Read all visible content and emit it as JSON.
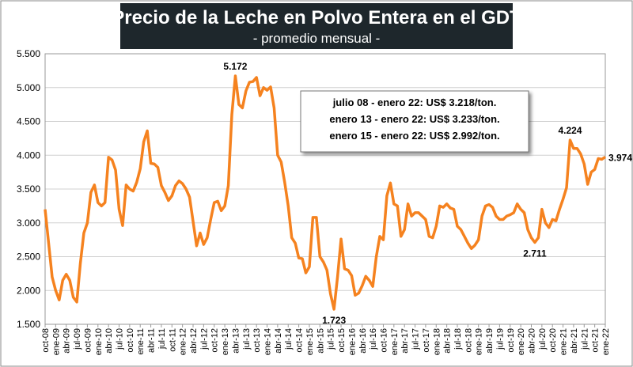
{
  "chart_data": {
    "type": "line",
    "title": "Precio de la Leche en Polvo Entera en el GDT",
    "subtitle": "- promedio mensual -",
    "annotations": [
      "julio 08 - enero 22: US$ 3.218/ton.",
      "enero 13 - enero 22: US$ 3.233/ton.",
      "enero 15 - enero 22: US$ 2.992/ton."
    ],
    "color": "#f5821f",
    "grid": true,
    "ylim": [
      1500,
      5500
    ],
    "yticks": [
      {
        "value": 1500,
        "label": "1.500"
      },
      {
        "value": 2000,
        "label": "2.000"
      },
      {
        "value": 2500,
        "label": "2.500"
      },
      {
        "value": 3000,
        "label": "3.000"
      },
      {
        "value": 3500,
        "label": "3.500"
      },
      {
        "value": 4000,
        "label": "4.000"
      },
      {
        "value": 4500,
        "label": "4.500"
      },
      {
        "value": 5000,
        "label": "5.000"
      },
      {
        "value": 5500,
        "label": "5.500"
      }
    ],
    "categories": [
      "oct-08",
      null,
      null,
      "ene-09",
      null,
      null,
      "abr-09",
      null,
      null,
      "jul-09",
      null,
      null,
      "oct-09",
      null,
      null,
      "ene-10",
      null,
      null,
      "abr-10",
      null,
      null,
      "jul-10",
      null,
      null,
      "oct-10",
      null,
      null,
      "ene-11",
      null,
      null,
      "abr-11",
      null,
      null,
      "jul-11",
      null,
      null,
      "oct-11",
      null,
      null,
      "ene-12",
      null,
      null,
      "abr-12",
      null,
      null,
      "jul-12",
      null,
      null,
      "oct-12",
      null,
      null,
      "ene-13",
      null,
      null,
      "abr-13",
      null,
      null,
      "jul-13",
      null,
      null,
      "oct-13",
      null,
      null,
      "ene-14",
      null,
      null,
      "abr-14",
      null,
      null,
      "jul-14",
      null,
      null,
      "oct-14",
      null,
      null,
      "ene-15",
      null,
      null,
      "abr-15",
      null,
      null,
      "jul-15",
      null,
      null,
      "oct-15",
      null,
      null,
      "ene-16",
      null,
      null,
      "abr-16",
      null,
      null,
      "jul-16",
      null,
      null,
      "oct-16",
      null,
      null,
      "ene-17",
      null,
      null,
      "abr-17",
      null,
      null,
      "jul-17",
      null,
      null,
      "oct-17",
      null,
      null,
      "ene-18",
      null,
      null,
      "abr-18",
      null,
      null,
      "jul-18",
      null,
      null,
      "oct-18",
      null,
      null,
      "ene-19",
      null,
      null,
      "abr-19",
      null,
      null,
      "jul-19",
      null,
      null,
      "oct-19",
      null,
      null,
      "ene-20",
      null,
      null,
      "abr-20",
      null,
      null,
      "jul-20",
      null,
      null,
      "oct-20",
      null,
      null,
      "ene-21",
      null,
      null,
      "abr-21",
      null,
      null,
      "jul-21",
      null,
      null,
      "oct-21",
      null,
      null,
      "ene-22"
    ],
    "values": [
      3200,
      2700,
      2200,
      2000,
      1860,
      2150,
      2240,
      2150,
      1900,
      1830,
      2400,
      2850,
      3000,
      3450,
      3560,
      3300,
      3250,
      3300,
      3970,
      3930,
      3780,
      3200,
      2960,
      3560,
      3500,
      3470,
      3600,
      3800,
      4200,
      4360,
      3880,
      3870,
      3820,
      3550,
      3450,
      3330,
      3400,
      3550,
      3620,
      3580,
      3500,
      3380,
      3020,
      2660,
      2850,
      2680,
      2780,
      3050,
      3300,
      3320,
      3180,
      3250,
      3550,
      4600,
      5172,
      4750,
      4700,
      4950,
      5080,
      5090,
      5150,
      4880,
      5000,
      4960,
      5010,
      4700,
      4000,
      3900,
      3600,
      3250,
      2780,
      2700,
      2480,
      2470,
      2260,
      2350,
      3080,
      3080,
      2500,
      2420,
      2300,
      1950,
      1723,
      2200,
      2760,
      2320,
      2300,
      2220,
      1930,
      1960,
      2070,
      2210,
      2150,
      2060,
      2500,
      2800,
      2750,
      3400,
      3590,
      3280,
      3250,
      2800,
      2900,
      3280,
      3100,
      3150,
      3150,
      3100,
      3050,
      2800,
      2780,
      2950,
      3250,
      3230,
      3280,
      3220,
      3200,
      2950,
      2900,
      2800,
      2700,
      2620,
      2670,
      2750,
      3100,
      3250,
      3270,
      3230,
      3100,
      3050,
      3050,
      3100,
      3120,
      3150,
      3280,
      3200,
      3150,
      2900,
      2780,
      2711,
      2780,
      3200,
      3000,
      2930,
      3050,
      3030,
      3200,
      3350,
      3520,
      4224,
      4100,
      4100,
      4020,
      3870,
      3570,
      3750,
      3790,
      3950,
      3940,
      3974
    ],
    "value_labels": [
      null,
      null,
      null,
      null,
      null,
      null,
      null,
      null,
      null,
      null,
      null,
      null,
      null,
      null,
      null,
      null,
      null,
      null,
      null,
      null,
      null,
      null,
      null,
      null,
      null,
      null,
      null,
      null,
      null,
      null,
      null,
      null,
      null,
      null,
      null,
      null,
      null,
      null,
      null,
      null,
      null,
      null,
      null,
      null,
      null,
      null,
      null,
      null,
      null,
      null,
      null,
      null,
      null,
      null,
      "5.172",
      null,
      null,
      null,
      null,
      null,
      null,
      null,
      null,
      null,
      null,
      null,
      null,
      null,
      null,
      null,
      null,
      null,
      null,
      null,
      null,
      null,
      null,
      null,
      null,
      null,
      null,
      null,
      "1.723",
      null,
      null,
      null,
      null,
      null,
      null,
      null,
      null,
      null,
      null,
      null,
      null,
      null,
      null,
      null,
      null,
      null,
      null,
      null,
      null,
      null,
      null,
      null,
      null,
      null,
      null,
      null,
      null,
      null,
      null,
      null,
      null,
      null,
      null,
      null,
      null,
      null,
      null,
      null,
      null,
      null,
      null,
      null,
      null,
      null,
      null,
      null,
      null,
      null,
      null,
      null,
      null,
      null,
      null,
      null,
      null,
      "2.711",
      null,
      null,
      null,
      null,
      null,
      null,
      null,
      null,
      null,
      "4.224",
      null,
      null,
      null,
      null,
      null,
      null,
      null,
      null,
      null,
      "3.974"
    ]
  }
}
